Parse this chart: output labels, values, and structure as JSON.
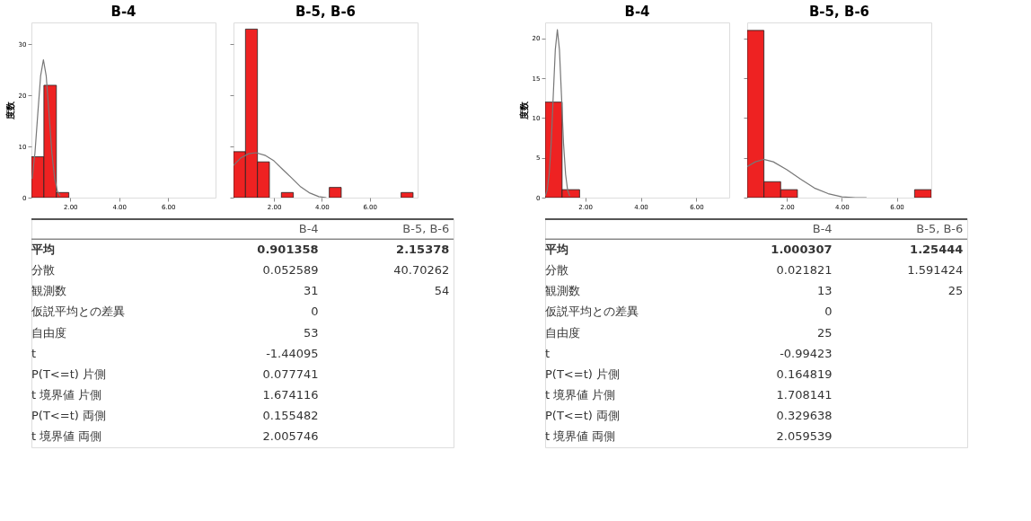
{
  "chart_data": [
    {
      "type": "histogram",
      "title": "B-4",
      "ylabel": "度数",
      "bins": [
        0.41,
        0.92,
        1.43,
        1.94
      ],
      "values": [
        8,
        22,
        1
      ],
      "color": "#ee2222",
      "xlim": [
        0.41,
        7.94
      ],
      "ylim": [
        0,
        34.3
      ],
      "xticks": [
        {
          "value": 2,
          "label": "2.00"
        },
        {
          "value": 4,
          "label": "4.00"
        },
        {
          "value": 6,
          "label": "6.00"
        }
      ],
      "yticks": [
        0,
        10,
        20,
        30
      ],
      "grid": false,
      "series": [
        {
          "type": "line",
          "color": "#777777",
          "x": [
            0.44,
            0.555,
            0.67,
            0.785,
            0.9,
            1.015,
            1.13,
            1.245,
            1.36,
            1.475,
            1.59
          ],
          "values": [
            3.7,
            8.8,
            16.4,
            23.8,
            27,
            23.8,
            16.4,
            8.8,
            3.7,
            1.2,
            0.3
          ]
        }
      ]
    },
    {
      "type": "histogram",
      "title": "B-5, B-6",
      "bins": [
        0.31,
        0.81,
        1.31,
        1.81,
        2.31,
        2.81,
        3.31,
        3.81,
        4.31,
        4.81,
        5.31,
        5.81,
        6.31,
        6.81,
        7.31,
        7.81
      ],
      "values": [
        9,
        33,
        7,
        0,
        1,
        0,
        0,
        0,
        2,
        0,
        0,
        0,
        0,
        0,
        1
      ],
      "color": "#ee2222",
      "xlim": [
        0.31,
        8.0
      ],
      "ylim": [
        0,
        34.3
      ],
      "xticks": [
        {
          "value": 2,
          "label": "2.00"
        },
        {
          "value": 4,
          "label": "4.00"
        },
        {
          "value": 6,
          "label": "6.00"
        }
      ],
      "yticks": [
        0,
        10,
        20,
        30
      ],
      "tick_labels": "x",
      "grid": false,
      "series": [
        {
          "type": "line",
          "color": "#777777",
          "x": [
            0.31,
            0.62,
            0.94,
            1.25,
            1.62,
            2.0,
            2.37,
            2.75,
            3.12,
            3.5,
            3.87,
            4.19
          ],
          "values": [
            6.3,
            7.8,
            8.6,
            8.8,
            8.3,
            7.2,
            5.5,
            3.8,
            2.1,
            0.9,
            0.2,
            0
          ]
        }
      ]
    },
    {
      "type": "histogram",
      "title": "B-4",
      "ylabel": "度数",
      "bins": [
        0.56,
        1.17,
        1.8
      ],
      "values": [
        12,
        1
      ],
      "color": "#ee2222",
      "xlim": [
        0.56,
        7.18
      ],
      "ylim": [
        0,
        22
      ],
      "xticks": [
        {
          "value": 2,
          "label": "2.00"
        },
        {
          "value": 4,
          "label": "4.00"
        },
        {
          "value": 6,
          "label": "6.00"
        }
      ],
      "yticks": [
        0,
        5,
        10,
        15,
        20
      ],
      "grid": false,
      "series": [
        {
          "type": "line",
          "color": "#777777",
          "x": [
            0.56,
            0.63,
            0.704,
            0.778,
            0.852,
            0.926,
            1.0,
            1.074,
            1.148,
            1.222,
            1.296,
            1.37,
            1.444
          ],
          "values": [
            0.2,
            0.9,
            2.9,
            6.8,
            12.8,
            18.6,
            21.1,
            18.6,
            12.8,
            6.8,
            2.9,
            0.9,
            0.2
          ]
        }
      ]
    },
    {
      "type": "histogram",
      "title": "B-5, B-6",
      "bins": [
        0.55,
        1.16,
        1.77,
        2.38,
        2.99,
        3.6,
        4.21,
        4.82,
        5.43,
        6.04,
        6.65,
        7.26
      ],
      "values": [
        21,
        2,
        1,
        0,
        0,
        0,
        0,
        0,
        0,
        0,
        1
      ],
      "color": "#ee2222",
      "xlim": [
        0.55,
        7.26
      ],
      "ylim": [
        0,
        22
      ],
      "xticks": [
        {
          "value": 2,
          "label": "2.00"
        },
        {
          "value": 4,
          "label": "4.00"
        },
        {
          "value": 6,
          "label": "6.00"
        }
      ],
      "yticks": [
        0,
        5,
        10,
        15,
        20
      ],
      "tick_labels": "x",
      "grid": false,
      "series": [
        {
          "type": "line",
          "color": "#777777",
          "x": [
            0.55,
            0.85,
            1.15,
            1.5,
            2.0,
            2.5,
            3.0,
            3.5,
            4.0,
            4.5,
            4.9
          ],
          "values": [
            3.9,
            4.5,
            4.8,
            4.5,
            3.5,
            2.3,
            1.2,
            0.5,
            0.1,
            0,
            0
          ]
        }
      ]
    },
    {
      "type": "other",
      "categories": [
        "B-4",
        "B-5, B-6"
      ],
      "y_categories": [
        "平均",
        "分散",
        "観測数",
        "仮説平均との差異",
        "自由度",
        "t",
        "P(T<=t) 片側",
        "t 境界値 片側",
        "P(T<=t) 両側",
        "t 境界値 両側"
      ],
      "cell_labels": [
        [
          "0.901358",
          "2.15378"
        ],
        [
          "0.052589",
          "40.70262"
        ],
        [
          "31",
          "54"
        ],
        [
          "0",
          null
        ],
        [
          "53",
          null
        ],
        [
          "-1.44095",
          null
        ],
        [
          "0.077741",
          null
        ],
        [
          "1.674116",
          null
        ],
        [
          "0.155482",
          null
        ],
        [
          "2.005746",
          null
        ]
      ]
    },
    {
      "type": "other",
      "categories": [
        "B-4",
        "B-5, B-6"
      ],
      "y_categories": [
        "平均",
        "分散",
        "観測数",
        "仮説平均との差異",
        "自由度",
        "t",
        "P(T<=t) 片側",
        "t 境界値 片側",
        "P(T<=t) 両側",
        "t 境界値 両側"
      ],
      "cell_labels": [
        [
          "1.000307",
          "1.25444"
        ],
        [
          "0.021821",
          "1.591424"
        ],
        [
          "13",
          "25"
        ],
        [
          "0",
          null
        ],
        [
          "25",
          null
        ],
        [
          "-0.99423",
          null
        ],
        [
          "0.164819",
          null
        ],
        [
          "1.708141",
          null
        ],
        [
          "0.329638",
          null
        ],
        [
          "2.059539",
          null
        ]
      ]
    }
  ]
}
